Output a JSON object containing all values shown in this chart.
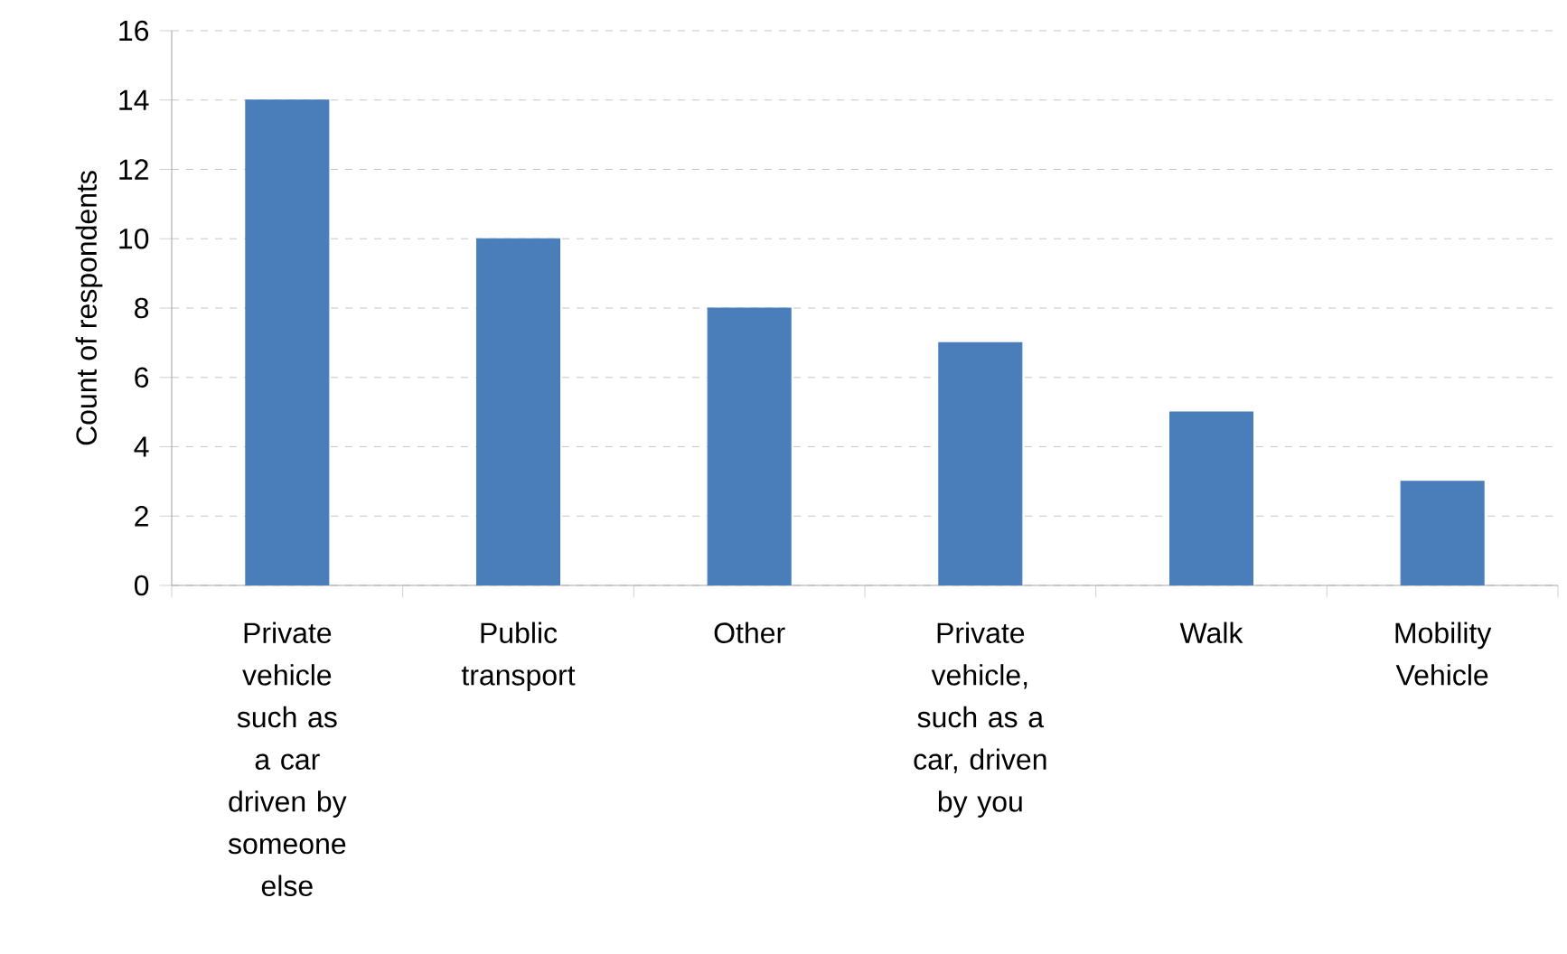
{
  "chart_data": {
    "type": "bar",
    "ylabel": "Count of respondents",
    "categories": [
      "Private vehicle such as a car driven by someone else",
      "Public transport",
      "Other",
      "Private vehicle, such as a car, driven by you",
      "Walk",
      "Mobility Vehicle"
    ],
    "values": [
      14,
      10,
      8,
      7,
      5,
      3
    ],
    "color": "#4a7ebb",
    "ylim": [
      0,
      16
    ],
    "yticks": [
      0,
      2,
      4,
      6,
      8,
      10,
      12,
      14,
      16
    ],
    "grid": "y"
  }
}
